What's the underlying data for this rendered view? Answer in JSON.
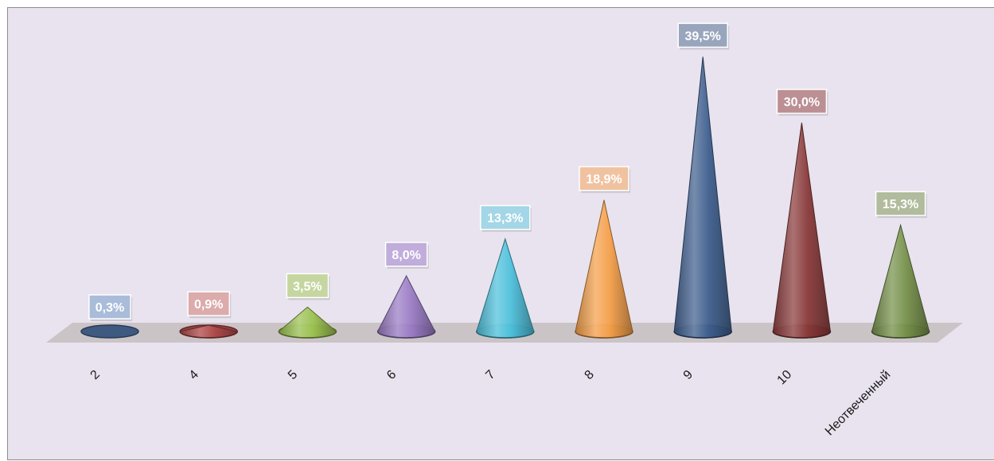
{
  "chart_data": {
    "type": "bar",
    "shape": "cone",
    "categories": [
      "2",
      "4",
      "5",
      "6",
      "7",
      "8",
      "9",
      "10",
      "Неотвеченный"
    ],
    "values": [
      0.3,
      0.9,
      3.5,
      8.0,
      13.3,
      18.9,
      39.5,
      30.0,
      15.3
    ],
    "data_labels": [
      "0,3%",
      "0,9%",
      "3,5%",
      "8,0%",
      "13,3%",
      "18,9%",
      "39,5%",
      "30,0%",
      "15,3%"
    ],
    "value_unit": "%",
    "ylim": [
      0,
      40
    ],
    "grid": false,
    "legend": "none",
    "title": "",
    "xlabel": "",
    "ylabel": "",
    "colors": [
      "#4a6a98",
      "#b04b4b",
      "#9cc251",
      "#9a7bc4",
      "#4ec1dc",
      "#f5a04a",
      "#3f5f8e",
      "#8a3a3a",
      "#76914a"
    ],
    "label_box_colors": [
      "#a9bcd9",
      "#dcabab",
      "#c6d6a0",
      "#c0addb",
      "#a3d6e6",
      "#f0c2a0",
      "#98a5bd",
      "#bb8f93",
      "#b1bb9d"
    ],
    "background_color": "#e8e3ee",
    "floor_color": "#cbc4c7"
  }
}
